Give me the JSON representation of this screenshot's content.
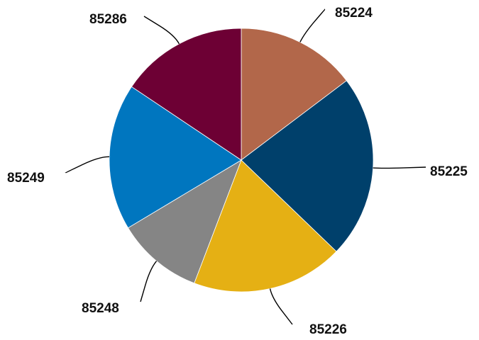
{
  "chart_data": {
    "type": "pie",
    "categories": [
      "85224",
      "85225",
      "85226",
      "85248",
      "85249",
      "85286"
    ],
    "values": [
      14.7,
      22.5,
      18.6,
      10.6,
      18.0,
      15.6
    ],
    "colors": [
      "#b2674a",
      "#00406b",
      "#e5b014",
      "#858585",
      "#0076bf",
      "#6d0034"
    ],
    "title": "",
    "legend": "none"
  }
}
